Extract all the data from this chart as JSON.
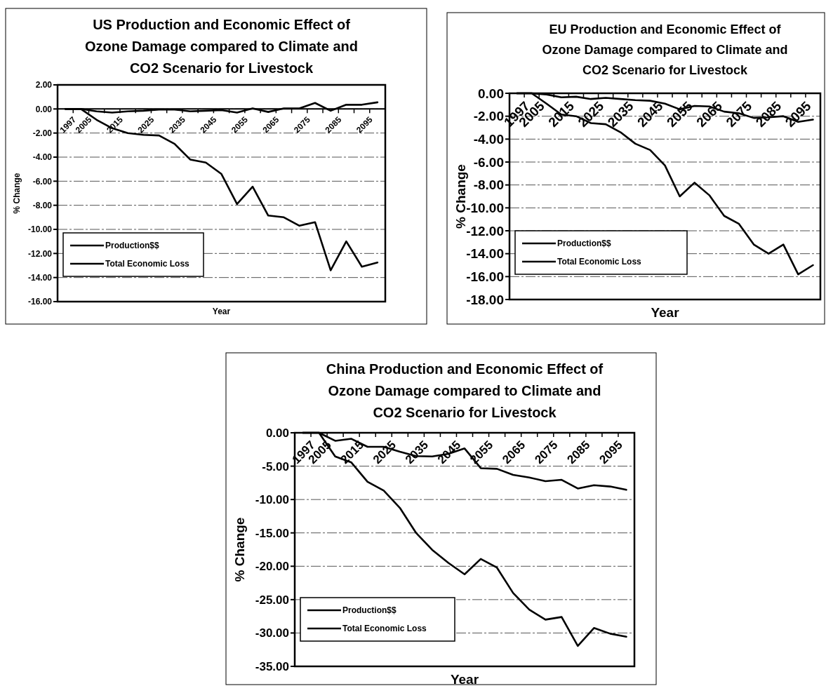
{
  "chart_data": [
    {
      "type": "line",
      "title": "US Production and Economic Effect of\nOzone Damage compared to Climate and\nCO2 Scenario for Livestock",
      "xlabel": "Year",
      "ylabel": "% Change",
      "categories": [
        "1997",
        "2005",
        null,
        "2015",
        null,
        "2025",
        null,
        "2035",
        null,
        "2045",
        null,
        "2055",
        null,
        "2065",
        null,
        "2075",
        null,
        "2085",
        null,
        "2095",
        null
      ],
      "series": [
        {
          "name": "Production$$",
          "color": "#000000",
          "values": [
            0,
            0,
            -0.2,
            -0.3,
            -0.2,
            -0.15,
            -0.05,
            -0.05,
            -0.2,
            -0.15,
            -0.1,
            -0.3,
            0.05,
            -0.25,
            0.05,
            0.05,
            0.5,
            -0.15,
            0.35,
            0.35,
            0.55
          ]
        },
        {
          "name": "Total Economic Loss",
          "color": "#000000",
          "values": [
            0,
            0,
            -0.9,
            -1.6,
            -2.0,
            -2.15,
            -2.2,
            -2.9,
            -4.2,
            -4.45,
            -5.4,
            -7.9,
            -6.45,
            -8.85,
            -9.0,
            -9.7,
            -9.4,
            -13.4,
            -11.0,
            -13.1,
            -12.75
          ]
        }
      ],
      "ylim": [
        -16,
        2
      ],
      "yticks": [
        {
          "value": 2,
          "label": "2.00"
        },
        {
          "value": 0,
          "label": "0.00"
        },
        {
          "value": -2,
          "label": "-2.00"
        },
        {
          "value": -4,
          "label": "-4.00"
        },
        {
          "value": -6,
          "label": "-6.00"
        },
        {
          "value": -8,
          "label": "-8.00"
        },
        {
          "value": -10,
          "label": "-10.00"
        },
        {
          "value": -12,
          "label": "-12.00"
        },
        {
          "value": -14,
          "label": "-14.00"
        },
        {
          "value": -16,
          "label": "-16.00"
        }
      ],
      "grid": "y",
      "legend": "bottom left"
    },
    {
      "type": "line",
      "title": "EU Production and Economic Effect of\nOzone Damage compared to Climate and\nCO2 Scenario for Livestock",
      "xlabel": "Year",
      "ylabel": "% Change",
      "categories": [
        "1997",
        "2005",
        null,
        "2015",
        null,
        "2025",
        null,
        "2035",
        null,
        "2045",
        null,
        "2055",
        null,
        "2065",
        null,
        "2075",
        null,
        "2085",
        null,
        "2095",
        null
      ],
      "series": [
        {
          "name": "Production$$",
          "color": "#000000",
          "values": [
            0,
            0,
            -0.1,
            -0.35,
            -0.3,
            -0.5,
            -0.4,
            -0.5,
            -0.6,
            -0.65,
            -0.9,
            -1.4,
            -1.1,
            -1.15,
            -1.6,
            -1.75,
            -2.15,
            -2.1,
            -2.0,
            -2.5,
            -2.3
          ]
        },
        {
          "name": "Total Economic Loss",
          "color": "#000000",
          "values": [
            0,
            0,
            -0.9,
            -1.85,
            -2.0,
            -2.6,
            -2.7,
            -3.4,
            -4.4,
            -4.95,
            -6.3,
            -9.0,
            -7.8,
            -8.9,
            -10.7,
            -11.4,
            -13.2,
            -14.0,
            -13.2,
            -15.8,
            -15.0
          ]
        }
      ],
      "ylim": [
        -18,
        0
      ],
      "yticks": [
        {
          "value": 0,
          "label": "0.00"
        },
        {
          "value": -2,
          "label": "-2.00"
        },
        {
          "value": -4,
          "label": "-4.00"
        },
        {
          "value": -6,
          "label": "-6.00"
        },
        {
          "value": -8,
          "label": "-8.00"
        },
        {
          "value": -10,
          "label": "-10.00"
        },
        {
          "value": -12,
          "label": "-12.00"
        },
        {
          "value": -14,
          "label": "-14.00"
        },
        {
          "value": -16,
          "label": "-16.00"
        },
        {
          "value": -18,
          "label": "-18.00"
        }
      ],
      "grid": "y",
      "legend": "bottom left"
    },
    {
      "type": "line",
      "title": "China Production and Economic Effect of\nOzone Damage compared to Climate and\nCO2 Scenario for Livestock",
      "xlabel": "Year",
      "ylabel": "% Change",
      "categories": [
        "1997",
        "2005",
        null,
        "2015",
        null,
        "2025",
        null,
        "2035",
        null,
        "2045",
        null,
        "2055",
        null,
        "2065",
        null,
        "2075",
        null,
        "2085",
        null,
        "2095",
        null
      ],
      "series": [
        {
          "name": "Production$$",
          "color": "#000000",
          "values": [
            0,
            0,
            -1.2,
            -0.9,
            -2.1,
            -2.1,
            -2.85,
            -3.5,
            -3.55,
            -3.15,
            -2.35,
            -5.3,
            -5.4,
            -6.3,
            -6.7,
            -7.25,
            -7.05,
            -8.35,
            -7.85,
            -8.05,
            -8.55
          ]
        },
        {
          "name": "Total Economic Loss",
          "color": "#000000",
          "values": [
            0,
            0,
            -3.55,
            -4.45,
            -7.35,
            -8.65,
            -11.25,
            -15.0,
            -17.55,
            -19.5,
            -21.2,
            -18.9,
            -20.2,
            -24.0,
            -26.5,
            -28.0,
            -27.6,
            -31.95,
            -29.25,
            -30.1,
            -30.55
          ]
        }
      ],
      "ylim": [
        -35,
        0
      ],
      "yticks": [
        {
          "value": 0,
          "label": "0.00"
        },
        {
          "value": -5,
          "label": "-5.00"
        },
        {
          "value": -10,
          "label": "-10.00"
        },
        {
          "value": -15,
          "label": "-15.00"
        },
        {
          "value": -20,
          "label": "-20.00"
        },
        {
          "value": -25,
          "label": "-25.00"
        },
        {
          "value": -30,
          "label": "-30.00"
        },
        {
          "value": -35,
          "label": "-35.00"
        }
      ],
      "grid": "y",
      "legend": "bottom left"
    }
  ]
}
